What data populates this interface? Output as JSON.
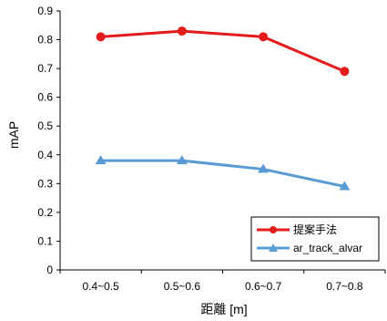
{
  "chart_data": {
    "type": "line",
    "categories": [
      "0.4~0.5",
      "0.5~0.6",
      "0.6~0.7",
      "0.7~0.8"
    ],
    "series": [
      {
        "name": "提案手法",
        "values": [
          0.81,
          0.83,
          0.81,
          0.69
        ],
        "color": "#e31b1b",
        "marker": "circle"
      },
      {
        "name": "ar_track_alvar",
        "values": [
          0.38,
          0.38,
          0.35,
          0.29
        ],
        "color": "#5b9bd5",
        "marker": "triangle"
      }
    ],
    "xlabel": "距離 [m]",
    "ylabel": "mAP",
    "ylim": [
      0,
      0.9
    ],
    "yticks": [
      "0",
      "0.1",
      "0.2",
      "0.3",
      "0.4",
      "0.5",
      "0.6",
      "0.7",
      "0.8",
      "0.9"
    ],
    "grid": false,
    "legend_position": "bottom-right"
  }
}
